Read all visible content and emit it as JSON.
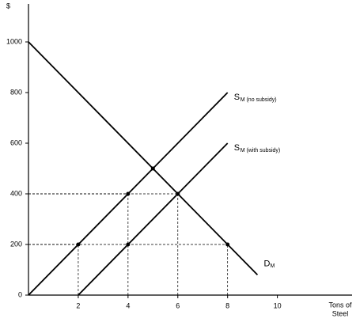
{
  "chart_data": {
    "type": "line",
    "y_label": "$",
    "x_label_lines": [
      "Tons of",
      "Steel"
    ],
    "xlim": [
      0,
      13
    ],
    "ylim": [
      0,
      1150
    ],
    "xticks": [
      2,
      4,
      6,
      8,
      10
    ],
    "yticks": [
      0,
      200,
      400,
      600,
      800,
      1000
    ],
    "color": "#000000",
    "series": [
      {
        "name": "S",
        "subscript": "M (no subsidy)",
        "x": [
          0,
          8
        ],
        "values": [
          0,
          800
        ]
      },
      {
        "name": "S",
        "subscript": "M (with subsidy)",
        "x": [
          2,
          8
        ],
        "values": [
          0,
          600
        ]
      },
      {
        "name": "D",
        "subscript": "M",
        "x": [
          0,
          9.2
        ],
        "values": [
          1000,
          80
        ]
      }
    ],
    "points": {
      "x": [
        2,
        4,
        5,
        4,
        6,
        8
      ],
      "values": [
        200,
        400,
        500,
        200,
        400,
        200
      ]
    },
    "guides": {
      "x": [
        2,
        4,
        6,
        8
      ],
      "values": [
        200,
        400,
        400,
        200
      ]
    }
  }
}
